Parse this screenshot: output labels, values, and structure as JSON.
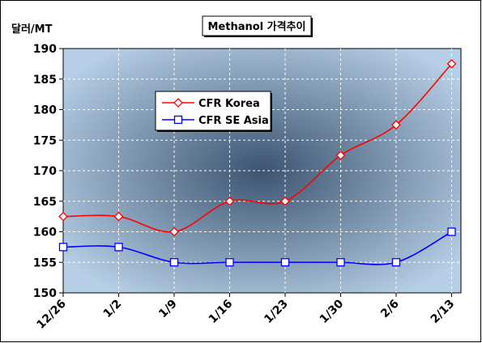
{
  "chart_data": {
    "type": "line",
    "title": "Methanol 가격추이",
    "ylabel": "달러/MT",
    "xlabel": "",
    "categories": [
      "12/26",
      "1/2",
      "1/9",
      "1/16",
      "1/23",
      "1/30",
      "2/6",
      "2/13"
    ],
    "ylim": [
      150,
      190
    ],
    "yticks": [
      150,
      155,
      160,
      165,
      170,
      175,
      180,
      185,
      190
    ],
    "grid": true,
    "legend_position": "upper-left inside plot",
    "series": [
      {
        "name": "CFR Korea",
        "values": [
          162.5,
          162.5,
          160,
          165,
          165,
          172.5,
          177.5,
          187.5
        ],
        "color": "#ff0000",
        "marker": "diamond"
      },
      {
        "name": "CFR SE Asia",
        "values": [
          157.5,
          157.5,
          155,
          155,
          155,
          155,
          155,
          160
        ],
        "color": "#0000ff",
        "marker": "square"
      }
    ]
  },
  "colors": {
    "plot_center": "#3c5470",
    "plot_edge": "#b6cfe6",
    "grid": "#ffffff"
  }
}
